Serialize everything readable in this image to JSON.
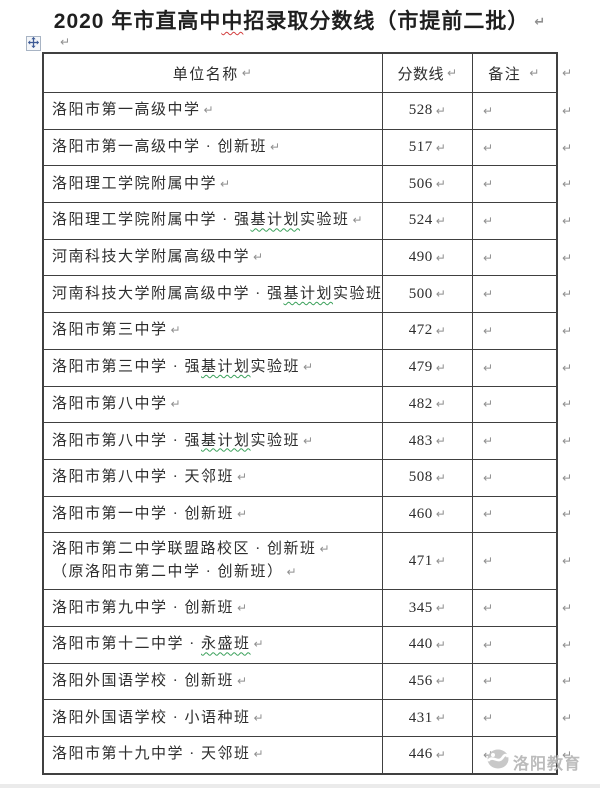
{
  "title": {
    "pre": "2020 年市直高中",
    "misspelled": "中",
    "post": "招录取分数线（市提前二批）"
  },
  "marks": {
    "pilcrow": "↵"
  },
  "table": {
    "headers": {
      "name": "单位名称",
      "score": "分数线",
      "remark": "备注"
    },
    "rows": [
      {
        "lines": [
          "洛阳市第一高级中学"
        ],
        "score": "528",
        "squiggle": ""
      },
      {
        "lines": [
          "洛阳市第一高级中学 · 创新班"
        ],
        "score": "517",
        "squiggle": ""
      },
      {
        "lines": [
          "洛阳理工学院附属中学"
        ],
        "score": "506",
        "squiggle": ""
      },
      {
        "lines": [
          "洛阳理工学院附属中学 · 强基计划实验班"
        ],
        "score": "524",
        "squiggle": "基计划"
      },
      {
        "lines": [
          "河南科技大学附属高级中学"
        ],
        "score": "490",
        "squiggle": ""
      },
      {
        "lines": [
          "河南科技大学附属高级中学 · 强基计划实验班"
        ],
        "score": "500",
        "squiggle": "基计划"
      },
      {
        "lines": [
          "洛阳市第三中学"
        ],
        "score": "472",
        "squiggle": ""
      },
      {
        "lines": [
          "洛阳市第三中学 · 强基计划实验班"
        ],
        "score": "479",
        "squiggle": "基计划"
      },
      {
        "lines": [
          "洛阳市第八中学"
        ],
        "score": "482",
        "squiggle": ""
      },
      {
        "lines": [
          "洛阳市第八中学 · 强基计划实验班"
        ],
        "score": "483",
        "squiggle": "基计划"
      },
      {
        "lines": [
          "洛阳市第八中学 · 天邻班"
        ],
        "score": "508",
        "squiggle": ""
      },
      {
        "lines": [
          "洛阳市第一中学 · 创新班"
        ],
        "score": "460",
        "squiggle": ""
      },
      {
        "lines": [
          "洛阳市第二中学联盟路校区 · 创新班",
          "（原洛阳市第二中学 · 创新班）"
        ],
        "score": "471",
        "squiggle": ""
      },
      {
        "lines": [
          "洛阳市第九中学 · 创新班"
        ],
        "score": "345",
        "squiggle": ""
      },
      {
        "lines": [
          "洛阳市第十二中学 · 永盛班"
        ],
        "score": "440",
        "squiggle": "永盛班"
      },
      {
        "lines": [
          "洛阳外国语学校 · 创新班"
        ],
        "score": "456",
        "squiggle": ""
      },
      {
        "lines": [
          "洛阳外国语学校 · 小语种班"
        ],
        "score": "431",
        "squiggle": ""
      },
      {
        "lines": [
          "洛阳市第十九中学 · 天邻班"
        ],
        "score": "446",
        "squiggle": ""
      }
    ]
  },
  "watermark": {
    "text": "洛阳教育"
  },
  "colors": {
    "border": "#404040",
    "text": "#2d2d2d",
    "pilcrow": "#8f8f8f",
    "squiggle_red": "#d23c3c",
    "squiggle_green": "#3aa05a",
    "watermark": "#b6b6b6",
    "handle_arrow": "#3d5a96"
  }
}
